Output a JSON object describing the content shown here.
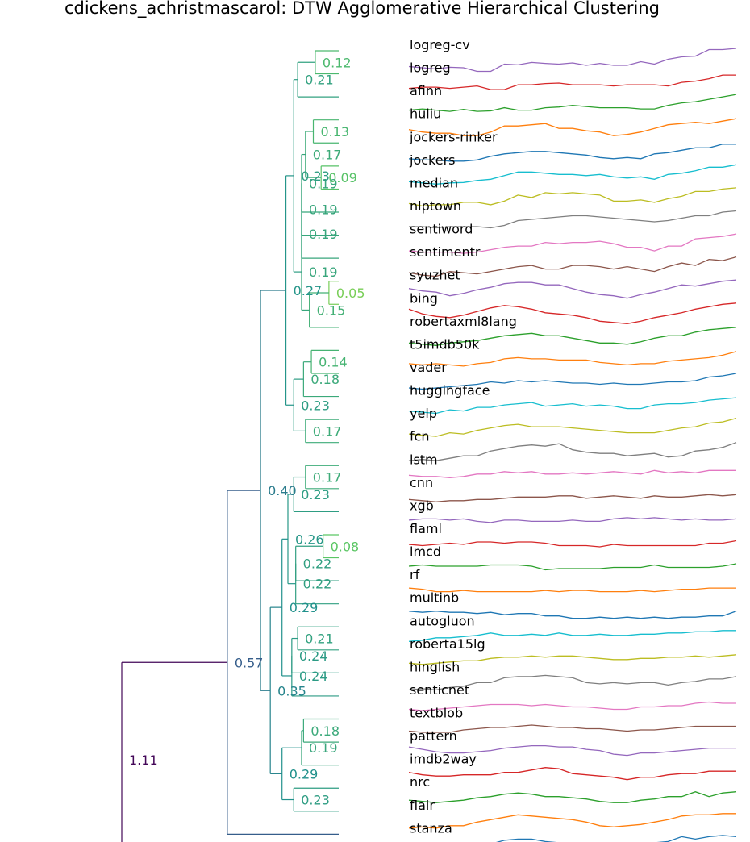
{
  "chart_data": {
    "type": "dendrogram",
    "title": "cdickens_achristmascarol: DTW Agglomerative Hierarchical Clustering",
    "leaves": [
      "logreg-cv",
      "logreg",
      "afinn",
      "huliu",
      "jockers-rinker",
      "jockers",
      "median",
      "nlptown",
      "sentiword",
      "sentimentr",
      "syuzhet",
      "bing",
      "robertaxml8lang",
      "t5imdb50k",
      "vader",
      "huggingface",
      "yelp",
      "fcn",
      "lstm",
      "cnn",
      "xgb",
      "flaml",
      "lmcd",
      "rf",
      "multinb",
      "autogluon",
      "roberta15lg",
      "hinglish",
      "senticnet",
      "textblob",
      "pattern",
      "imdb2way",
      "nrc",
      "flair",
      "stanza"
    ],
    "series_colors": [
      "#9467bd",
      "#d62728",
      "#2ca02c",
      "#ff7f0e",
      "#1f77b4",
      "#17becf",
      "#bcbd22",
      "#7f7f7f",
      "#e377c2",
      "#8c564b"
    ],
    "x_scale_max": 1.11,
    "merges": [
      {
        "a": "logreg-cv",
        "b": "logreg",
        "h": 0.12
      },
      {
        "a": 0,
        "b": "afinn",
        "h": 0.21
      },
      {
        "a": "huliu",
        "b": "jockers-rinker",
        "h": 0.13
      },
      {
        "a": "jockers",
        "b": "median",
        "h": 0.09
      },
      {
        "a": 2,
        "b": 3,
        "h": 0.17
      },
      {
        "a": 4,
        "b": "nlptown",
        "h": 0.19
      },
      {
        "a": 5,
        "b": "sentiword",
        "h": 0.19
      },
      {
        "a": 6,
        "b": "sentimentr",
        "h": 0.19
      },
      {
        "a": "syuzhet",
        "b": "bing",
        "h": 0.05
      },
      {
        "a": 8,
        "b": "robertaxml8lang",
        "h": 0.15
      },
      {
        "a": 7,
        "b": 9,
        "h": 0.19
      },
      {
        "a": 1,
        "b": 10,
        "h": 0.23
      },
      {
        "a": "t5imdb50k",
        "b": "vader",
        "h": 0.14
      },
      {
        "a": 12,
        "b": "huggingface",
        "h": 0.18
      },
      {
        "a": "yelp",
        "b": "fcn",
        "h": 0.17
      },
      {
        "a": 13,
        "b": 14,
        "h": 0.23
      },
      {
        "a": 11,
        "b": 15,
        "h": 0.27
      },
      {
        "a": "lstm",
        "b": "cnn",
        "h": 0.17
      },
      {
        "a": 17,
        "b": "xgb",
        "h": 0.23
      },
      {
        "a": "flaml",
        "b": "lmcd",
        "h": 0.08
      },
      {
        "a": 19,
        "b": "rf",
        "h": 0.22
      },
      {
        "a": 20,
        "b": "multinb",
        "h": 0.22
      },
      {
        "a": 18,
        "b": 21,
        "h": 0.26
      },
      {
        "a": "autogluon",
        "b": "roberta15lg",
        "h": 0.21
      },
      {
        "a": "hinglish",
        "b": 23,
        "h": 0.24
      },
      {
        "a": 24,
        "b": "senticnet",
        "h": 0.24
      },
      {
        "a": 22,
        "b": 25,
        "h": 0.29
      },
      {
        "a": "textblob",
        "b": "pattern",
        "h": 0.18
      },
      {
        "a": 27,
        "b": "imdb2way",
        "h": 0.19
      },
      {
        "a": "nrc",
        "b": "flair",
        "h": 0.23
      },
      {
        "a": 28,
        "b": 29,
        "h": 0.29
      },
      {
        "a": 26,
        "b": 30,
        "h": 0.35
      },
      {
        "a": 16,
        "b": 31,
        "h": 0.4
      },
      {
        "a": 32,
        "b": "stanza",
        "h": 0.57
      },
      {
        "a": 33,
        "b": "__offscreen__",
        "h": 1.11
      }
    ],
    "leaf_series_y": [
      [
        0.25,
        0.2,
        0.15,
        0.22,
        0.2,
        0.05,
        0.05,
        0.35,
        0.32,
        0.42,
        0.38,
        0.35,
        0.4,
        0.3,
        0.38,
        0.3,
        0.3,
        0.45,
        0.35,
        0.55,
        0.65,
        0.68,
        0.95,
        0.95,
        1.0
      ],
      [
        0.3,
        0.35,
        0.35,
        0.3,
        0.35,
        0.4,
        0.25,
        0.25,
        0.45,
        0.45,
        0.5,
        0.52,
        0.45,
        0.45,
        0.45,
        0.4,
        0.45,
        0.45,
        0.45,
        0.4,
        0.55,
        0.6,
        0.7,
        0.85,
        0.85
      ],
      [
        0.35,
        0.4,
        0.35,
        0.3,
        0.38,
        0.3,
        0.32,
        0.45,
        0.35,
        0.35,
        0.45,
        0.48,
        0.55,
        0.5,
        0.45,
        0.45,
        0.45,
        0.4,
        0.4,
        0.55,
        0.65,
        0.7,
        0.8,
        0.9,
        1.0
      ],
      [
        0.5,
        0.4,
        0.35,
        0.35,
        0.25,
        0.25,
        0.4,
        0.65,
        0.65,
        0.7,
        0.75,
        0.55,
        0.55,
        0.45,
        0.4,
        0.25,
        0.3,
        0.4,
        0.55,
        0.7,
        0.75,
        0.8,
        0.75,
        0.85,
        0.95
      ],
      [
        0.25,
        0.2,
        0.2,
        0.15,
        0.15,
        0.2,
        0.35,
        0.45,
        0.5,
        0.55,
        0.55,
        0.5,
        0.45,
        0.4,
        0.3,
        0.25,
        0.3,
        0.25,
        0.45,
        0.5,
        0.6,
        0.7,
        0.7,
        0.85,
        0.85
      ],
      [
        0.25,
        0.2,
        0.15,
        0.2,
        0.22,
        0.3,
        0.35,
        0.5,
        0.65,
        0.65,
        0.6,
        0.55,
        0.55,
        0.5,
        0.55,
        0.45,
        0.4,
        0.45,
        0.35,
        0.55,
        0.6,
        0.7,
        0.85,
        0.85,
        0.95
      ],
      [
        0.3,
        0.2,
        0.25,
        0.25,
        0.35,
        0.35,
        0.25,
        0.4,
        0.65,
        0.55,
        0.75,
        0.7,
        0.75,
        0.7,
        0.65,
        0.4,
        0.4,
        0.45,
        0.35,
        0.5,
        0.6,
        0.8,
        0.8,
        0.9,
        0.95
      ],
      [
        0.3,
        0.3,
        0.25,
        0.3,
        0.3,
        0.3,
        0.25,
        0.35,
        0.55,
        0.6,
        0.65,
        0.7,
        0.75,
        0.75,
        0.7,
        0.65,
        0.6,
        0.55,
        0.5,
        0.55,
        0.65,
        0.75,
        0.75,
        0.9,
        0.95
      ],
      [
        0.25,
        0.2,
        0.2,
        0.2,
        0.15,
        0.2,
        0.3,
        0.4,
        0.45,
        0.45,
        0.6,
        0.55,
        0.6,
        0.6,
        0.65,
        0.55,
        0.4,
        0.4,
        0.25,
        0.45,
        0.45,
        0.75,
        0.8,
        0.85,
        0.95
      ],
      [
        0.3,
        0.2,
        0.15,
        0.35,
        0.3,
        0.25,
        0.35,
        0.45,
        0.55,
        0.6,
        0.45,
        0.45,
        0.6,
        0.6,
        0.55,
        0.45,
        0.55,
        0.45,
        0.35,
        0.55,
        0.7,
        0.6,
        0.85,
        0.8,
        0.95
      ],
      [
        0.6,
        0.5,
        0.45,
        0.3,
        0.4,
        0.55,
        0.65,
        0.8,
        0.85,
        0.85,
        0.75,
        0.75,
        0.6,
        0.45,
        0.35,
        0.3,
        0.2,
        0.35,
        0.45,
        0.6,
        0.75,
        0.7,
        0.8,
        0.9,
        0.95
      ],
      [
        0.7,
        0.5,
        0.4,
        0.35,
        0.45,
        0.6,
        0.75,
        0.85,
        0.8,
        0.7,
        0.55,
        0.5,
        0.45,
        0.35,
        0.2,
        0.15,
        0.1,
        0.2,
        0.35,
        0.45,
        0.55,
        0.7,
        0.8,
        0.9,
        0.95
      ],
      [
        0.25,
        0.2,
        0.15,
        0.25,
        0.3,
        0.35,
        0.45,
        0.55,
        0.6,
        0.65,
        0.55,
        0.55,
        0.45,
        0.35,
        0.25,
        0.25,
        0.2,
        0.3,
        0.45,
        0.55,
        0.55,
        0.7,
        0.8,
        0.85,
        0.9
      ],
      [
        0.35,
        0.3,
        0.35,
        0.3,
        0.25,
        0.35,
        0.4,
        0.55,
        0.6,
        0.55,
        0.55,
        0.5,
        0.5,
        0.5,
        0.4,
        0.35,
        0.3,
        0.35,
        0.35,
        0.45,
        0.5,
        0.55,
        0.6,
        0.7,
        0.85
      ],
      [
        0.3,
        0.25,
        0.3,
        0.35,
        0.4,
        0.45,
        0.55,
        0.5,
        0.6,
        0.55,
        0.6,
        0.55,
        0.5,
        0.5,
        0.45,
        0.5,
        0.45,
        0.45,
        0.5,
        0.55,
        0.55,
        0.6,
        0.75,
        0.8,
        0.9
      ],
      [
        0.3,
        0.25,
        0.2,
        0.35,
        0.3,
        0.45,
        0.45,
        0.55,
        0.6,
        0.65,
        0.5,
        0.55,
        0.6,
        0.5,
        0.55,
        0.5,
        0.4,
        0.4,
        0.55,
        0.6,
        0.6,
        0.65,
        0.75,
        0.8,
        0.85
      ],
      [
        0.3,
        0.25,
        0.2,
        0.35,
        0.3,
        0.45,
        0.55,
        0.65,
        0.7,
        0.6,
        0.6,
        0.6,
        0.55,
        0.5,
        0.45,
        0.4,
        0.35,
        0.35,
        0.35,
        0.45,
        0.55,
        0.6,
        0.75,
        0.8,
        0.95
      ],
      [
        0.15,
        0.2,
        0.15,
        0.25,
        0.35,
        0.35,
        0.55,
        0.65,
        0.75,
        0.8,
        0.75,
        0.85,
        0.6,
        0.5,
        0.45,
        0.45,
        0.35,
        0.4,
        0.45,
        0.3,
        0.35,
        0.55,
        0.6,
        0.7,
        0.9
      ],
      [
        0.5,
        0.45,
        0.45,
        0.4,
        0.45,
        0.55,
        0.55,
        0.65,
        0.6,
        0.65,
        0.55,
        0.55,
        0.6,
        0.55,
        0.6,
        0.65,
        0.6,
        0.55,
        0.7,
        0.6,
        0.65,
        0.6,
        0.7,
        0.7,
        0.7
      ],
      [
        0.45,
        0.4,
        0.35,
        0.4,
        0.4,
        0.45,
        0.45,
        0.5,
        0.55,
        0.55,
        0.55,
        0.6,
        0.6,
        0.5,
        0.55,
        0.6,
        0.55,
        0.5,
        0.6,
        0.55,
        0.55,
        0.6,
        0.65,
        0.6,
        0.65
      ],
      [
        0.55,
        0.6,
        0.6,
        0.55,
        0.6,
        0.5,
        0.45,
        0.55,
        0.55,
        0.5,
        0.5,
        0.5,
        0.55,
        0.5,
        0.5,
        0.6,
        0.65,
        0.6,
        0.65,
        0.6,
        0.55,
        0.6,
        0.55,
        0.55,
        0.6
      ],
      [
        0.5,
        0.45,
        0.5,
        0.55,
        0.5,
        0.6,
        0.6,
        0.55,
        0.6,
        0.6,
        0.55,
        0.45,
        0.45,
        0.45,
        0.4,
        0.5,
        0.45,
        0.45,
        0.45,
        0.45,
        0.45,
        0.45,
        0.55,
        0.55,
        0.65
      ],
      [
        0.55,
        0.6,
        0.55,
        0.55,
        0.55,
        0.55,
        0.6,
        0.6,
        0.6,
        0.55,
        0.4,
        0.45,
        0.45,
        0.45,
        0.45,
        0.5,
        0.5,
        0.5,
        0.6,
        0.5,
        0.5,
        0.5,
        0.5,
        0.55,
        0.65
      ],
      [
        0.6,
        0.55,
        0.45,
        0.45,
        0.5,
        0.45,
        0.45,
        0.45,
        0.45,
        0.45,
        0.5,
        0.45,
        0.5,
        0.5,
        0.45,
        0.45,
        0.45,
        0.5,
        0.45,
        0.5,
        0.55,
        0.55,
        0.6,
        0.6,
        0.6
      ],
      [
        0.6,
        0.55,
        0.6,
        0.55,
        0.55,
        0.5,
        0.55,
        0.45,
        0.5,
        0.5,
        0.4,
        0.4,
        0.3,
        0.3,
        0.35,
        0.3,
        0.35,
        0.3,
        0.35,
        0.3,
        0.35,
        0.35,
        0.4,
        0.4,
        0.6
      ],
      [
        0.3,
        0.35,
        0.45,
        0.45,
        0.5,
        0.55,
        0.65,
        0.55,
        0.55,
        0.6,
        0.55,
        0.65,
        0.55,
        0.55,
        0.6,
        0.55,
        0.55,
        0.6,
        0.6,
        0.65,
        0.65,
        0.7,
        0.7,
        0.75,
        0.75
      ],
      [
        0.35,
        0.3,
        0.35,
        0.4,
        0.45,
        0.45,
        0.55,
        0.6,
        0.6,
        0.65,
        0.6,
        0.65,
        0.65,
        0.6,
        0.55,
        0.5,
        0.5,
        0.55,
        0.55,
        0.6,
        0.6,
        0.65,
        0.6,
        0.65,
        0.7
      ],
      [
        0.2,
        0.25,
        0.2,
        0.3,
        0.35,
        0.5,
        0.5,
        0.7,
        0.75,
        0.75,
        0.8,
        0.75,
        0.7,
        0.5,
        0.45,
        0.5,
        0.45,
        0.5,
        0.5,
        0.4,
        0.5,
        0.55,
        0.65,
        0.65,
        0.75
      ],
      [
        0.35,
        0.3,
        0.35,
        0.4,
        0.45,
        0.5,
        0.55,
        0.55,
        0.55,
        0.5,
        0.55,
        0.5,
        0.45,
        0.45,
        0.4,
        0.35,
        0.35,
        0.45,
        0.45,
        0.5,
        0.5,
        0.6,
        0.65,
        0.6,
        0.6
      ],
      [
        0.4,
        0.35,
        0.35,
        0.35,
        0.45,
        0.5,
        0.55,
        0.55,
        0.6,
        0.65,
        0.6,
        0.55,
        0.55,
        0.5,
        0.5,
        0.45,
        0.4,
        0.45,
        0.45,
        0.5,
        0.55,
        0.6,
        0.6,
        0.6,
        0.6
      ],
      [
        0.7,
        0.6,
        0.5,
        0.45,
        0.45,
        0.5,
        0.55,
        0.65,
        0.7,
        0.75,
        0.75,
        0.7,
        0.7,
        0.6,
        0.55,
        0.4,
        0.35,
        0.45,
        0.45,
        0.5,
        0.55,
        0.6,
        0.65,
        0.65,
        0.65
      ],
      [
        0.6,
        0.5,
        0.45,
        0.45,
        0.5,
        0.5,
        0.5,
        0.6,
        0.6,
        0.7,
        0.8,
        0.75,
        0.55,
        0.5,
        0.45,
        0.4,
        0.3,
        0.4,
        0.4,
        0.5,
        0.55,
        0.55,
        0.65,
        0.65,
        0.65
      ],
      [
        0.4,
        0.35,
        0.3,
        0.35,
        0.4,
        0.5,
        0.55,
        0.65,
        0.7,
        0.65,
        0.55,
        0.55,
        0.5,
        0.45,
        0.35,
        0.3,
        0.3,
        0.4,
        0.45,
        0.55,
        0.55,
        0.75,
        0.55,
        0.7,
        0.75
      ],
      [
        0.2,
        0.25,
        0.2,
        0.3,
        0.3,
        0.45,
        0.55,
        0.65,
        0.75,
        0.7,
        0.65,
        0.6,
        0.55,
        0.45,
        0.3,
        0.25,
        0.3,
        0.35,
        0.45,
        0.55,
        0.7,
        0.75,
        0.75,
        0.8,
        0.8
      ],
      [
        0.2,
        0.15,
        0.2,
        0.2,
        0.25,
        0.35,
        0.5,
        0.65,
        0.7,
        0.7,
        0.6,
        0.55,
        0.5,
        0.45,
        0.35,
        0.3,
        0.35,
        0.45,
        0.55,
        0.6,
        0.8,
        0.7,
        0.8,
        0.85,
        0.8
      ]
    ]
  }
}
